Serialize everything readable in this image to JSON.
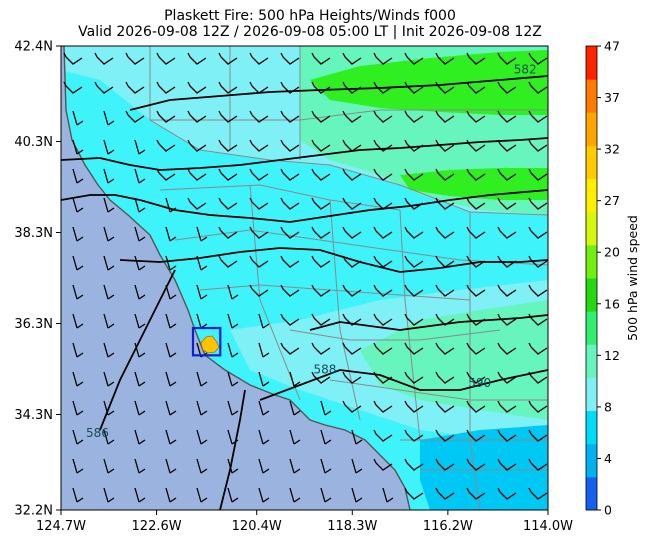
{
  "title": {
    "line1": "Plaskett Fire: 500 hPa Heights/Winds f000",
    "line2": "Valid 2026-09-08 12Z / 2026-09-08 05:00 LT | Init 2026-09-08 12Z"
  },
  "axes": {
    "x_ticks": [
      {
        "value": -124.7,
        "label": "124.7W"
      },
      {
        "value": -122.6,
        "label": "122.6W"
      },
      {
        "value": -120.4,
        "label": "120.4W"
      },
      {
        "value": -118.3,
        "label": "118.3W"
      },
      {
        "value": -116.2,
        "label": "116.2W"
      },
      {
        "value": -114.0,
        "label": "114.0W"
      }
    ],
    "y_ticks": [
      {
        "value": 42.4,
        "label": "42.4N"
      },
      {
        "value": 40.3,
        "label": "40.3N"
      },
      {
        "value": 38.3,
        "label": "38.3N"
      },
      {
        "value": 36.3,
        "label": "36.3N"
      },
      {
        "value": 34.3,
        "label": "34.3N"
      },
      {
        "value": 32.2,
        "label": "32.2N"
      }
    ],
    "lon_range": [
      -124.7,
      -114.0
    ],
    "lat_range": [
      32.2,
      42.4
    ]
  },
  "colorbar": {
    "label": "500 hPa wind speed",
    "ticks": [
      0,
      4,
      8,
      12,
      16,
      20,
      27,
      32,
      37,
      47
    ],
    "colors": [
      "#1560f0",
      "#00b2f2",
      "#00dcf7",
      "#7ff0f6",
      "#67f5be",
      "#31f06d",
      "#25d811",
      "#70f00f",
      "#d5f80c",
      "#ffee00",
      "#ffcc00",
      "#ffa500",
      "#ff7a00",
      "#ff2200"
    ]
  },
  "contour_labels": [
    {
      "text": "582",
      "lon": -114.5,
      "lat": 41.8
    },
    {
      "text": "586",
      "lon": -123.9,
      "lat": 33.8
    },
    {
      "text": "588",
      "lon": -118.9,
      "lat": 35.2
    },
    {
      "text": "590",
      "lon": -115.5,
      "lat": 34.9
    }
  ],
  "fire_box": {
    "lon_min": -121.8,
    "lon_max": -121.2,
    "lat_min": 35.6,
    "lat_max": 36.2
  },
  "colors": {
    "ocean": "#9bb3df",
    "land_cyan": "#3ff3fa",
    "land_light": "#7ff0f6",
    "aqua": "#67f5be",
    "green": "#30ef20",
    "fire": "#ffc300",
    "box": "#1020d0"
  }
}
